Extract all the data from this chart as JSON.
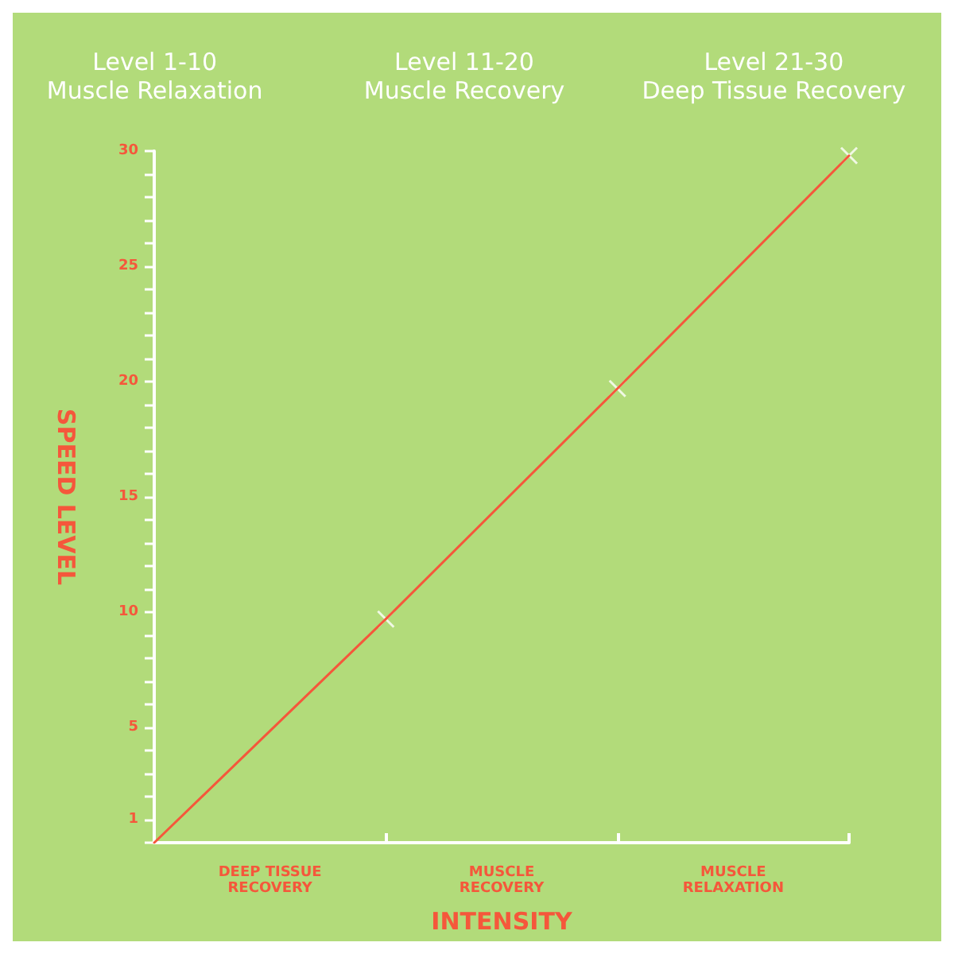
{
  "chart_data": {
    "type": "line",
    "xlabel": "INTENSITY",
    "ylabel": "SPEED LEVEL",
    "annotations": [
      "Level 1-10\nMuscle Relaxation",
      "Level 11-20\nMuscle Recovery",
      "Level 21-30\nDeep Tissue Recovery",
      "DEEP TISSUE\nRECOVERY",
      "MUSCLE\nRECOVERY",
      "MUSCLE\nRELAXATION"
    ],
    "categories": [
      null,
      null,
      null,
      null
    ],
    "ylim": [
      0,
      30
    ],
    "yticks": [
      {
        "value": 0,
        "label": null
      },
      1,
      {
        "value": 2,
        "label": null
      },
      {
        "value": 3,
        "label": null
      },
      {
        "value": 4,
        "label": null
      },
      5,
      {
        "value": 6,
        "label": null
      },
      {
        "value": 7,
        "label": null
      },
      {
        "value": 8,
        "label": null
      },
      {
        "value": 9,
        "label": null
      },
      10,
      {
        "value": 11,
        "label": null
      },
      {
        "value": 12,
        "label": null
      },
      {
        "value": 13,
        "label": null
      },
      {
        "value": 14,
        "label": null
      },
      15,
      {
        "value": 16,
        "label": null
      },
      {
        "value": 17,
        "label": null
      },
      {
        "value": 18,
        "label": null
      },
      {
        "value": 19,
        "label": null
      },
      20,
      {
        "value": 21,
        "label": null
      },
      {
        "value": 22,
        "label": null
      },
      {
        "value": 23,
        "label": null
      },
      {
        "value": 24,
        "label": null
      },
      25,
      {
        "value": 26,
        "label": null
      },
      {
        "value": 27,
        "label": null
      },
      {
        "value": 28,
        "label": null
      },
      {
        "value": 29,
        "label": null
      },
      30
    ],
    "grid": false,
    "series": [
      {
        "color": "#f5573b",
        "values": [
          0,
          9.7,
          19.7,
          29.8
        ],
        "marker": "none"
      },
      {
        "type": "scatter",
        "color": "#ffffff",
        "values": [
          null,
          9.7,
          19.7,
          29.8
        ],
        "marker": "cross"
      }
    ]
  }
}
